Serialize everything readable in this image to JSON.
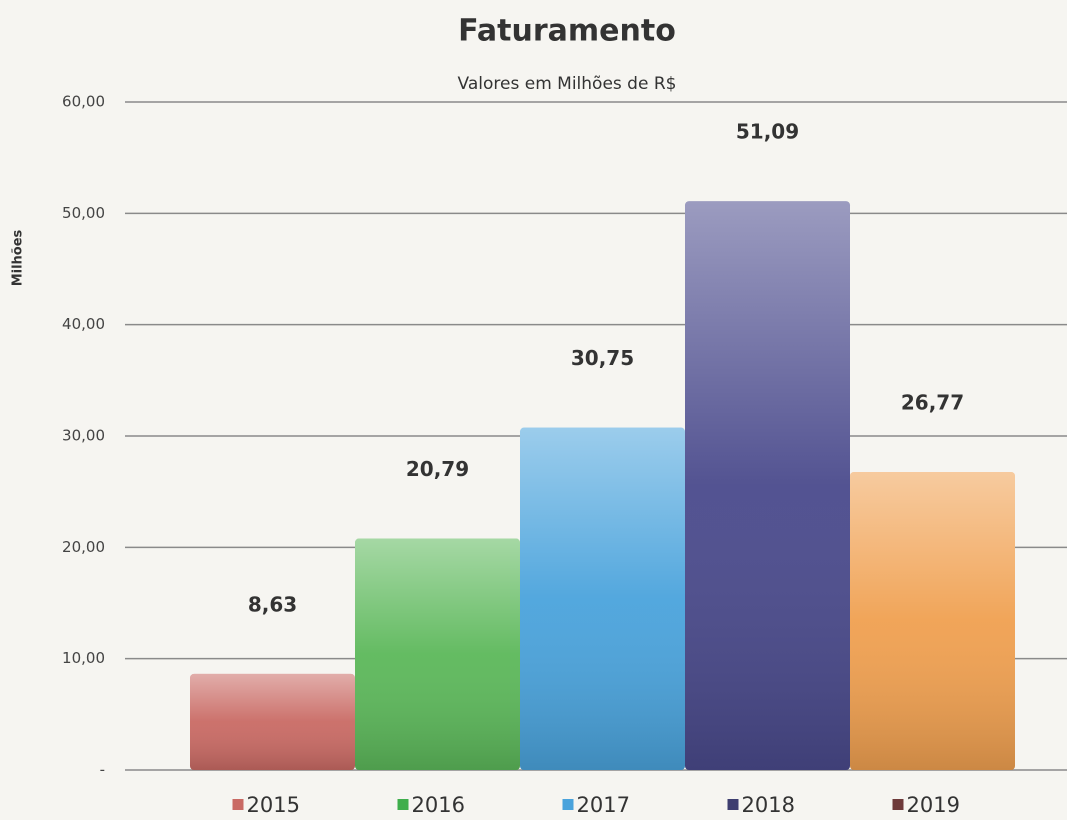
{
  "chart_data": {
    "type": "bar",
    "title": "Faturamento",
    "subtitle": "Valores em Milhões de R$",
    "y_label": "Milhões",
    "series": [
      {
        "name": "2015",
        "color": "#c96a64",
        "legend_color": "#c96a64",
        "values": [
          8.63
        ],
        "value_labels": [
          "8,63"
        ]
      },
      {
        "name": "2016",
        "color": "#5cb85a",
        "legend_color": "#3fae4c",
        "values": [
          20.79
        ],
        "value_labels": [
          "20,79"
        ]
      },
      {
        "name": "2017",
        "color": "#4aa3dc",
        "legend_color": "#4aa3dc",
        "values": [
          30.75
        ],
        "value_labels": [
          "30,75"
        ]
      },
      {
        "name": "2018",
        "color": "#4a4a8c",
        "legend_color": "#3e3e70",
        "values": [
          51.09
        ],
        "value_labels": [
          "51,09"
        ]
      },
      {
        "name": "2019",
        "color": "#f0a050",
        "legend_color": "#6e3a3a",
        "values": [
          26.77
        ],
        "value_labels": [
          "26,77"
        ]
      }
    ],
    "ylim": [
      0,
      60
    ],
    "yticks": [
      {
        "value": 0,
        "label": "-"
      },
      {
        "value": 10,
        "label": "10,00"
      },
      {
        "value": 20,
        "label": "20,00"
      },
      {
        "value": 30,
        "label": "30,00"
      },
      {
        "value": 40,
        "label": "40,00"
      },
      {
        "value": 50,
        "label": "50,00"
      },
      {
        "value": 60,
        "label": "60,00"
      }
    ],
    "grid": true
  }
}
